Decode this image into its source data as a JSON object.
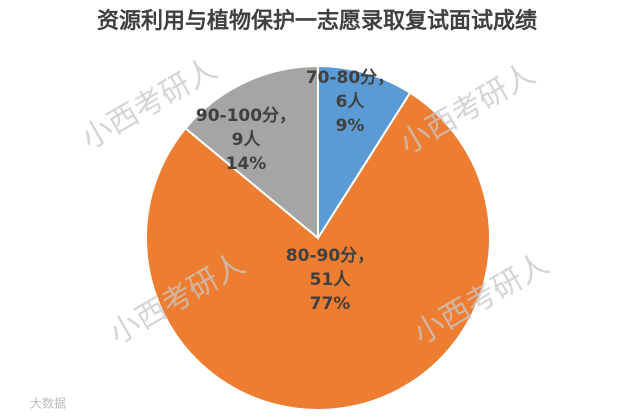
{
  "chart_data": {
    "type": "pie",
    "title": "资源利用与植物保护一志愿录取复试面试成绩",
    "categories": [
      "70-80分",
      "80-90分",
      "90-100分"
    ],
    "label_separator": "，",
    "counts": [
      6,
      51,
      9
    ],
    "count_labels": [
      "6人",
      "51人",
      "9人"
    ],
    "values": [
      9,
      77,
      14
    ],
    "value_labels": [
      "9%",
      "77%",
      "14%"
    ],
    "colors": [
      "#5b9bd5",
      "#ed7d31",
      "#a5a5a5"
    ],
    "watermark": "小西考研人",
    "logo": "大数据"
  }
}
